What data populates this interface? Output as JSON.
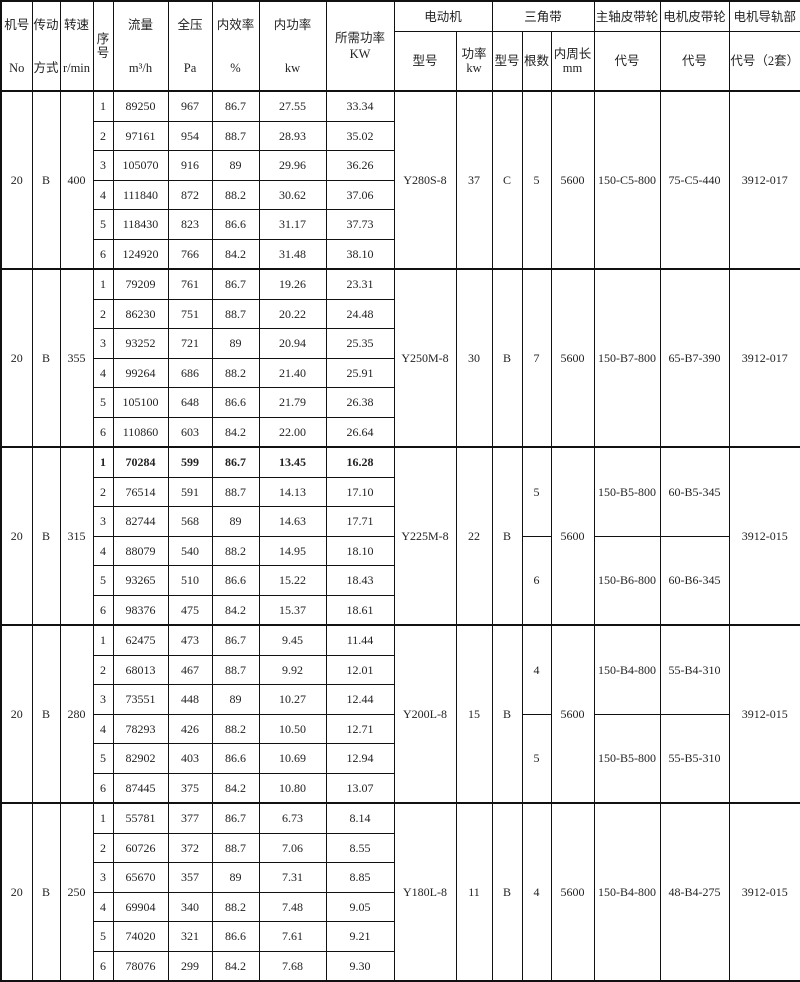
{
  "header": {
    "machine_no": [
      "机号",
      "No"
    ],
    "drive": [
      "传动",
      "方式"
    ],
    "speed": [
      "转速",
      "r/min"
    ],
    "seq": "序号",
    "flow": [
      "流量",
      "m³/h"
    ],
    "pressure": [
      "全压",
      "Pa"
    ],
    "efficiency": [
      "内效率",
      "%"
    ],
    "internal_power": [
      "内功率",
      "kw"
    ],
    "required_power": [
      "所需功率",
      "KW"
    ],
    "motor": "电动机",
    "motor_model": "型号",
    "motor_power": [
      "功率",
      "kw"
    ],
    "vbelt": "三角带",
    "belt_type": "型号",
    "belt_count": "根数",
    "belt_length": [
      "内周长",
      "mm"
    ],
    "main_pulley": "主轴皮带轮",
    "main_pulley_code": "代号",
    "motor_pulley": "电机皮带轮",
    "motor_pulley_code": "代号",
    "rail": "电机导轨部",
    "rail_code": "代号（2套）"
  },
  "groups": [
    {
      "no": "20",
      "drive": "B",
      "speed": "400",
      "motor_model": "Y280S-8",
      "motor_power": "37",
      "belt_type": "C",
      "belt_length": "5600",
      "rail": "3912-017",
      "belts": [
        {
          "count": "5",
          "main": "150-C5-800",
          "motor": "75-C5-440"
        }
      ],
      "rows": [
        [
          "1",
          "89250",
          "967",
          "86.7",
          "27.55",
          "33.34"
        ],
        [
          "2",
          "97161",
          "954",
          "88.7",
          "28.93",
          "35.02"
        ],
        [
          "3",
          "105070",
          "916",
          "89",
          "29.96",
          "36.26"
        ],
        [
          "4",
          "111840",
          "872",
          "88.2",
          "30.62",
          "37.06"
        ],
        [
          "5",
          "118430",
          "823",
          "86.6",
          "31.17",
          "37.73"
        ],
        [
          "6",
          "124920",
          "766",
          "84.2",
          "31.48",
          "38.10"
        ]
      ]
    },
    {
      "no": "20",
      "drive": "B",
      "speed": "355",
      "motor_model": "Y250M-8",
      "motor_power": "30",
      "belt_type": "B",
      "belt_length": "5600",
      "rail": "3912-017",
      "belts": [
        {
          "count": "7",
          "main": "150-B7-800",
          "motor": "65-B7-390"
        }
      ],
      "rows": [
        [
          "1",
          "79209",
          "761",
          "86.7",
          "19.26",
          "23.31"
        ],
        [
          "2",
          "86230",
          "751",
          "88.7",
          "20.22",
          "24.48"
        ],
        [
          "3",
          "93252",
          "721",
          "89",
          "20.94",
          "25.35"
        ],
        [
          "4",
          "99264",
          "686",
          "88.2",
          "21.40",
          "25.91"
        ],
        [
          "5",
          "105100",
          "648",
          "86.6",
          "21.79",
          "26.38"
        ],
        [
          "6",
          "110860",
          "603",
          "84.2",
          "22.00",
          "26.64"
        ]
      ]
    },
    {
      "no": "20",
      "drive": "B",
      "speed": "315",
      "motor_model": "Y225M-8",
      "motor_power": "22",
      "belt_type": "B",
      "belt_length": "5600",
      "rail": "3912-015",
      "belts": [
        {
          "count": "5",
          "main": "150-B5-800",
          "motor": "60-B5-345"
        },
        {
          "count": "6",
          "main": "150-B6-800",
          "motor": "60-B6-345"
        }
      ],
      "rows": [
        [
          "1",
          "70284",
          "599",
          "86.7",
          "13.45",
          "16.28"
        ],
        [
          "2",
          "76514",
          "591",
          "88.7",
          "14.13",
          "17.10"
        ],
        [
          "3",
          "82744",
          "568",
          "89",
          "14.63",
          "17.71"
        ],
        [
          "4",
          "88079",
          "540",
          "88.2",
          "14.95",
          "18.10"
        ],
        [
          "5",
          "93265",
          "510",
          "86.6",
          "15.22",
          "18.43"
        ],
        [
          "6",
          "98376",
          "475",
          "84.2",
          "15.37",
          "18.61"
        ]
      ]
    },
    {
      "no": "20",
      "drive": "B",
      "speed": "280",
      "motor_model": "Y200L-8",
      "motor_power": "15",
      "belt_type": "B",
      "belt_length": "5600",
      "rail": "3912-015",
      "belts": [
        {
          "count": "4",
          "main": "150-B4-800",
          "motor": "55-B4-310"
        },
        {
          "count": "5",
          "main": "150-B5-800",
          "motor": "55-B5-310"
        }
      ],
      "rows": [
        [
          "1",
          "62475",
          "473",
          "86.7",
          "9.45",
          "11.44"
        ],
        [
          "2",
          "68013",
          "467",
          "88.7",
          "9.92",
          "12.01"
        ],
        [
          "3",
          "73551",
          "448",
          "89",
          "10.27",
          "12.44"
        ],
        [
          "4",
          "78293",
          "426",
          "88.2",
          "10.50",
          "12.71"
        ],
        [
          "5",
          "82902",
          "403",
          "86.6",
          "10.69",
          "12.94"
        ],
        [
          "6",
          "87445",
          "375",
          "84.2",
          "10.80",
          "13.07"
        ]
      ]
    },
    {
      "no": "20",
      "drive": "B",
      "speed": "250",
      "motor_model": "Y180L-8",
      "motor_power": "11",
      "belt_type": "B",
      "belt_length": "5600",
      "rail": "3912-015",
      "belts": [
        {
          "count": "4",
          "main": "150-B4-800",
          "motor": "48-B4-275"
        }
      ],
      "rows": [
        [
          "1",
          "55781",
          "377",
          "86.7",
          "6.73",
          "8.14"
        ],
        [
          "2",
          "60726",
          "372",
          "88.7",
          "7.06",
          "8.55"
        ],
        [
          "3",
          "65670",
          "357",
          "89",
          "7.31",
          "8.85"
        ],
        [
          "4",
          "69904",
          "340",
          "88.2",
          "7.48",
          "9.05"
        ],
        [
          "5",
          "74020",
          "321",
          "86.6",
          "7.61",
          "9.21"
        ],
        [
          "6",
          "78076",
          "299",
          "84.2",
          "7.68",
          "9.30"
        ]
      ]
    }
  ]
}
